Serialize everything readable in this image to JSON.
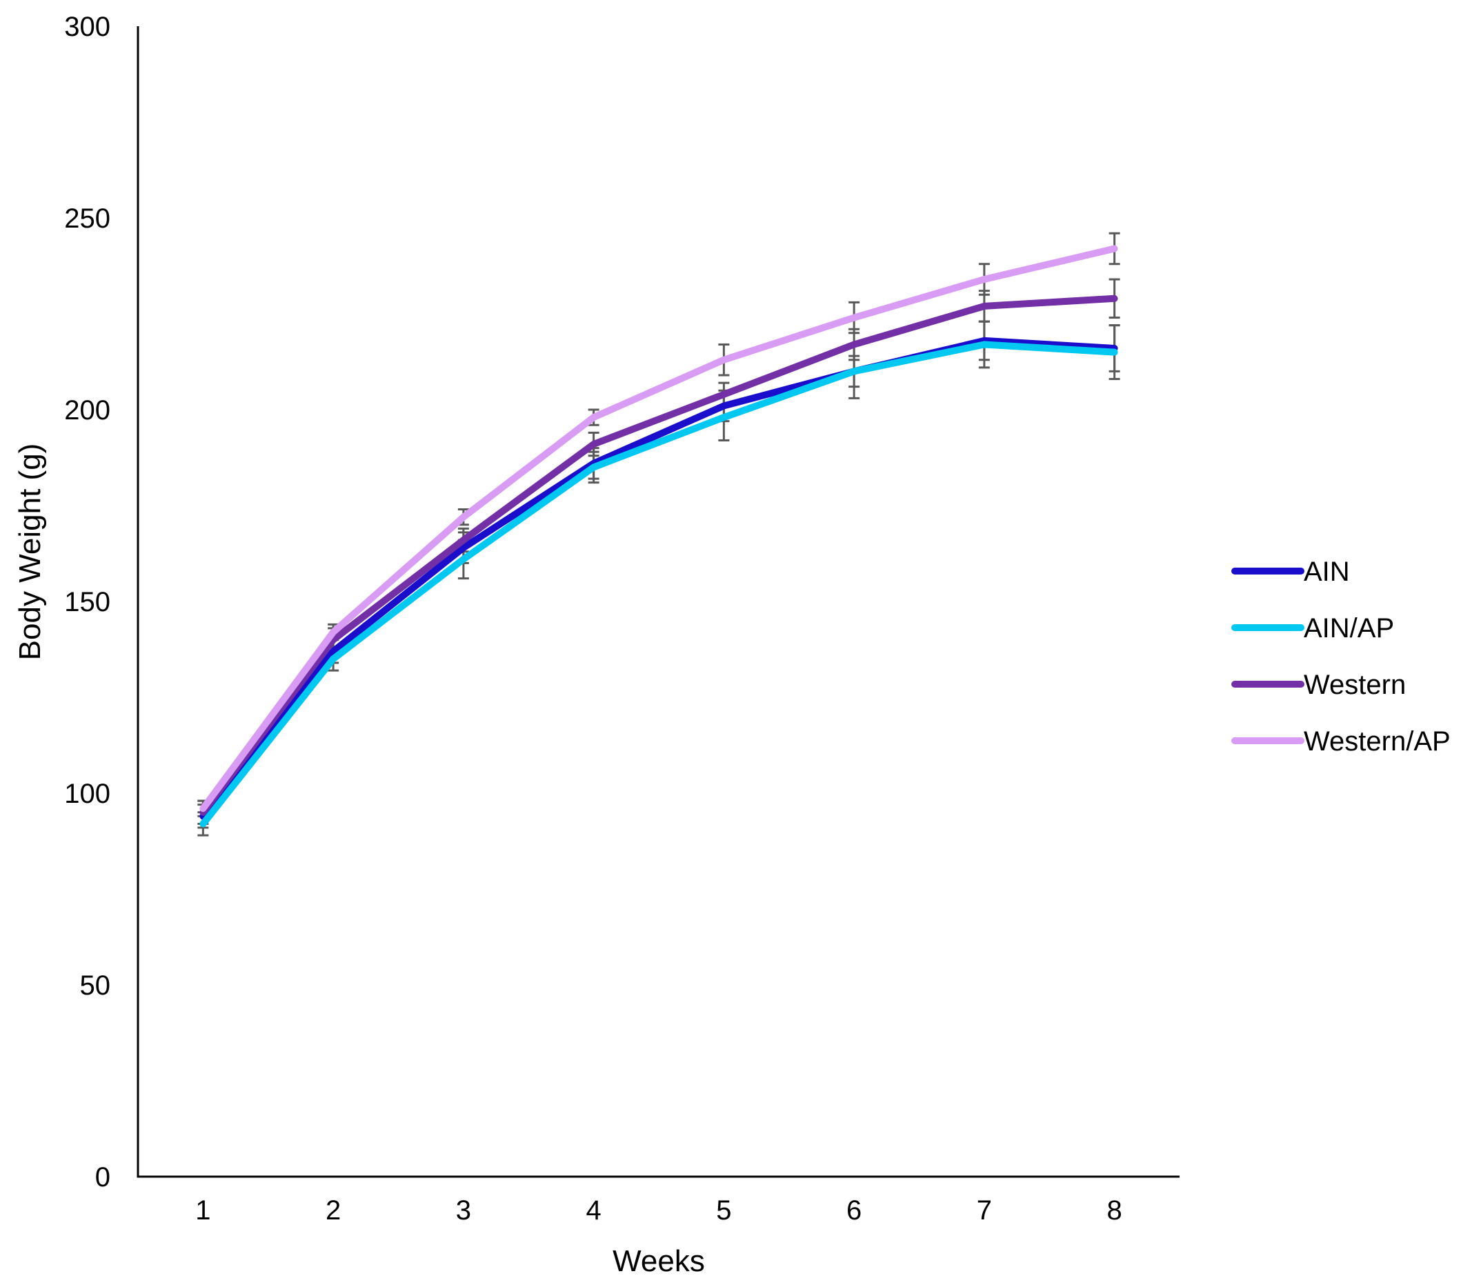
{
  "chart_data": {
    "type": "line",
    "title": "",
    "xlabel": "Weeks",
    "ylabel": "Body Weight (g)",
    "x": [
      1,
      2,
      3,
      4,
      5,
      6,
      7,
      8
    ],
    "xlim": [
      0.5,
      8.5
    ],
    "ylim": [
      0,
      300
    ],
    "yticks": [
      0,
      50,
      100,
      150,
      200,
      250,
      300
    ],
    "grid": false,
    "legend_position": "right",
    "error_bar_color": "#595959",
    "series": [
      {
        "name": "AIN",
        "color": "#1a0dcc",
        "values": [
          94,
          137,
          164,
          186,
          201,
          210,
          218,
          216
        ],
        "errors": [
          3,
          3,
          4,
          4,
          4,
          4,
          5,
          6
        ]
      },
      {
        "name": "AIN/AP",
        "color": "#00c8f0",
        "values": [
          92,
          135,
          161,
          185,
          198,
          210,
          217,
          215
        ],
        "errors": [
          3,
          3,
          5,
          4,
          6,
          7,
          6,
          7
        ]
      },
      {
        "name": "Western",
        "color": "#7330a6",
        "values": [
          95,
          140,
          166,
          191,
          204,
          217,
          227,
          229
        ],
        "errors": [
          3,
          3,
          3,
          3,
          3,
          4,
          4,
          5
        ]
      },
      {
        "name": "Western/AP",
        "color": "#d99cf5",
        "values": [
          96,
          142,
          172,
          198,
          213,
          224,
          234,
          242
        ],
        "errors": [
          2,
          2,
          2,
          2,
          4,
          4,
          4,
          4
        ]
      }
    ]
  }
}
